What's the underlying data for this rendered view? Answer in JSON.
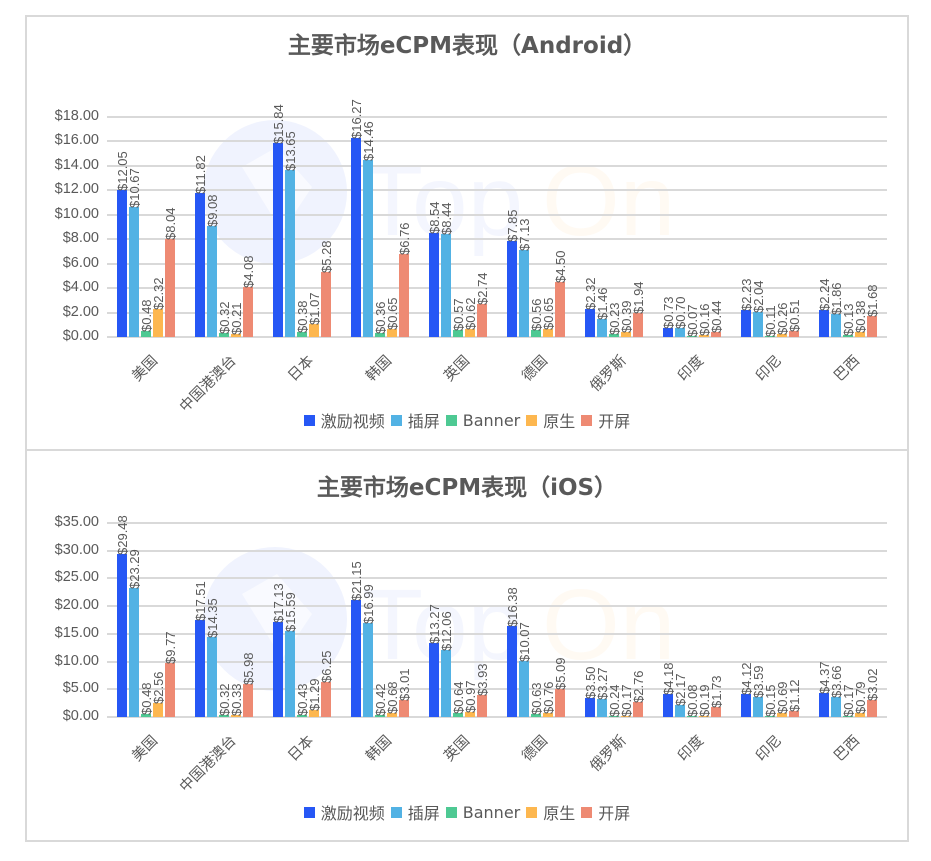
{
  "colors": {
    "激励视频": "#2657F5",
    "插屏": "#52B2E4",
    "Banner": "#4EC993",
    "原生": "#FDB74F",
    "开屏": "#EE8A73"
  },
  "watermark": {
    "text_left": "Top",
    "text_right": "On"
  },
  "chart_data": [
    {
      "type": "bar",
      "title": "主要市场eCPM表现（Android）",
      "xlabel": "",
      "ylabel": "",
      "ylim": [
        0,
        18
      ],
      "yticks": [
        "$0.00",
        "$2.00",
        "$4.00",
        "$6.00",
        "$8.00",
        "$10.00",
        "$12.00",
        "$14.00",
        "$16.00",
        "$18.00"
      ],
      "grid": true,
      "legend_position": "bottom",
      "categories": [
        "美国",
        "中国港澳台",
        "日本",
        "韩国",
        "英国",
        "德国",
        "俄罗斯",
        "印度",
        "印尼",
        "巴西"
      ],
      "series": [
        {
          "name": "激励视频",
          "values": [
            12.05,
            11.82,
            15.84,
            16.27,
            8.54,
            7.85,
            2.32,
            0.73,
            2.23,
            2.24
          ]
        },
        {
          "name": "插屏",
          "values": [
            10.67,
            9.08,
            13.65,
            14.46,
            8.44,
            7.13,
            1.46,
            0.7,
            2.04,
            1.86
          ]
        },
        {
          "name": "Banner",
          "values": [
            0.48,
            0.32,
            0.38,
            0.36,
            0.57,
            0.56,
            0.23,
            0.07,
            0.11,
            0.13
          ]
        },
        {
          "name": "原生",
          "values": [
            2.32,
            0.21,
            1.07,
            0.65,
            0.62,
            0.65,
            0.39,
            0.16,
            0.26,
            0.38
          ]
        },
        {
          "name": "开屏",
          "values": [
            8.04,
            4.08,
            5.28,
            6.76,
            2.74,
            4.5,
            1.94,
            0.44,
            0.51,
            1.68
          ]
        }
      ],
      "value_labels": [
        [
          "$12.05",
          "$11.82",
          "$15.84",
          "$16.27",
          "$8.54",
          "$7.85",
          "$2.32",
          "$0.73",
          "$2.23",
          "$2.24"
        ],
        [
          "$10.67",
          "$9.08",
          "$13.65",
          "$14.46",
          "$8.44",
          "$7.13",
          "$1.46",
          "$0.70",
          "$2.04",
          "$1.86"
        ],
        [
          "$0.48",
          "$0.32",
          "$0.38",
          "$0.36",
          "$0.57",
          "$0.56",
          "$0.23",
          "$0.07",
          "$0.11",
          "$0.13"
        ],
        [
          "$2.32",
          "$0.21",
          "$1.07",
          "$0.65",
          "$0.62",
          "$0.65",
          "$0.39",
          "$0.16",
          "$0.26",
          "$0.38"
        ],
        [
          "$8.04",
          "$4.08",
          "$5.28",
          "$6.76",
          "$2.74",
          "$4.50",
          "$1.94",
          "$0.44",
          "$0.51",
          "$1.68"
        ]
      ]
    },
    {
      "type": "bar",
      "title": "主要市场eCPM表现（iOS）",
      "xlabel": "",
      "ylabel": "",
      "ylim": [
        0,
        35
      ],
      "yticks": [
        "$0.00",
        "$5.00",
        "$10.00",
        "$15.00",
        "$20.00",
        "$25.00",
        "$30.00",
        "$35.00"
      ],
      "grid": true,
      "legend_position": "bottom",
      "categories": [
        "美国",
        "中国港澳台",
        "日本",
        "韩国",
        "英国",
        "德国",
        "俄罗斯",
        "印度",
        "印尼",
        "巴西"
      ],
      "series": [
        {
          "name": "激励视频",
          "values": [
            29.48,
            17.51,
            17.13,
            21.15,
            13.27,
            16.38,
            3.5,
            4.18,
            4.12,
            4.37
          ]
        },
        {
          "name": "插屏",
          "values": [
            23.29,
            14.35,
            15.59,
            16.99,
            12.06,
            10.07,
            3.27,
            2.17,
            3.59,
            3.66
          ]
        },
        {
          "name": "Banner",
          "values": [
            0.48,
            0.32,
            0.43,
            0.42,
            0.64,
            0.63,
            0.24,
            0.08,
            0.15,
            0.17
          ]
        },
        {
          "name": "原生",
          "values": [
            2.56,
            0.33,
            1.29,
            0.68,
            0.97,
            0.76,
            0.17,
            0.19,
            0.69,
            0.79
          ]
        },
        {
          "name": "开屏",
          "values": [
            9.77,
            5.98,
            6.25,
            3.01,
            3.93,
            5.09,
            2.76,
            1.73,
            1.12,
            3.02
          ]
        }
      ],
      "value_labels": [
        [
          "$29.48",
          "$17.51",
          "$17.13",
          "$21.15",
          "$13.27",
          "$16.38",
          "$3.50",
          "$4.18",
          "$4.12",
          "$4.37"
        ],
        [
          "$23.29",
          "$14.35",
          "$15.59",
          "$16.99",
          "$12.06",
          "$10.07",
          "$3.27",
          "$2.17",
          "$3.59",
          "$3.66"
        ],
        [
          "$0.48",
          "$0.32",
          "$0.43",
          "$0.42",
          "$0.64",
          "$0.63",
          "$0.24",
          "$0.08",
          "$0.15",
          "$0.17"
        ],
        [
          "$2.56",
          "$0.33",
          "$1.29",
          "$0.68",
          "$0.97",
          "$0.76",
          "$0.17",
          "$0.19",
          "$0.69",
          "$0.79"
        ],
        [
          "$9.77",
          "$5.98",
          "$6.25",
          "$3.01",
          "$3.93",
          "$5.09",
          "$2.76",
          "$1.73",
          "$1.12",
          "$3.02"
        ]
      ]
    }
  ]
}
